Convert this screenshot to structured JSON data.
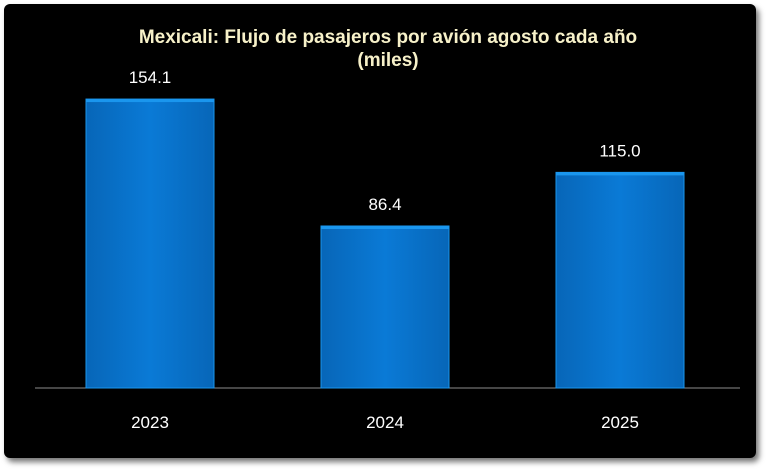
{
  "chart_data": {
    "type": "bar",
    "title": "Mexicali: Flujo de pasajeros por avión agosto cada año",
    "subtitle": "(miles)",
    "categories": [
      "2023",
      "2024",
      "2025"
    ],
    "values": [
      154.1,
      86.4,
      115.0
    ],
    "value_labels": [
      "154.1",
      "86.4",
      "115.0"
    ],
    "xlabel": "",
    "ylabel": "",
    "ylim": [
      0,
      160
    ],
    "grid": false,
    "legend": "none",
    "colors": {
      "background": "#000000",
      "bar": "#0a78d2",
      "bar_top": "#1a96ee",
      "title": "#f7f1c9",
      "text": "#ffffff",
      "axis": "#8c8c8c"
    }
  }
}
